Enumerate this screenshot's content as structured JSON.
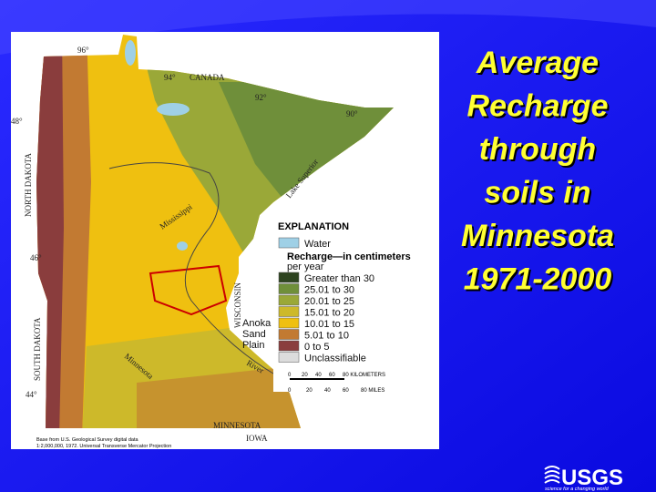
{
  "title_lines": [
    "Average",
    "Recharge",
    "through",
    "soils in",
    "Minnesota",
    "1971-2000"
  ],
  "map": {
    "labels": [
      "96°",
      "94°",
      "CANADA",
      "92°",
      "90°",
      "48°",
      "NORTH DAKOTA",
      "Lake Superior",
      "Mississippi",
      "46°",
      "SOUTH DAKOTA",
      "WISCONSIN",
      "Minnesota",
      "River",
      "44°",
      "MINNESOTA",
      "IOWA"
    ],
    "explanation": {
      "heading": "EXPLANATION",
      "subheading": "Recharge—in centimeters",
      "subheading2": "per year",
      "water": {
        "label": "Water",
        "color": "#9fd0e6"
      },
      "items": [
        {
          "label": "Greater than 30",
          "color": "#2e4420"
        },
        {
          "label": "25.01 to 30",
          "color": "#6f8f3a"
        },
        {
          "label": "20.01 to 25",
          "color": "#9aa838"
        },
        {
          "label": "15.01 to 20",
          "color": "#cdb92a"
        },
        {
          "label": "10.01 to 15",
          "color": "#efc010"
        },
        {
          "label": "5.01 to 10",
          "color": "#c27a32"
        },
        {
          "label": "0 to 5",
          "color": "#8a3d3d"
        },
        {
          "label": "Unclassifiable",
          "color": "#dcdcdc"
        }
      ]
    },
    "anoka": [
      "Anoka",
      "Sand",
      "Plain"
    ],
    "scale_km": [
      "0",
      "20",
      "40",
      "60",
      "80 KILOMETERS"
    ],
    "scale_mi": [
      "0",
      "20",
      "40",
      "60",
      "80 MILES"
    ],
    "credit": [
      "Base from U.S. Geological Survey digital data",
      "1:2,000,000, 1972. Universal Transverse Mercator Projection"
    ]
  },
  "logo": {
    "name": "USGS",
    "tagline": "science for a changing world"
  }
}
